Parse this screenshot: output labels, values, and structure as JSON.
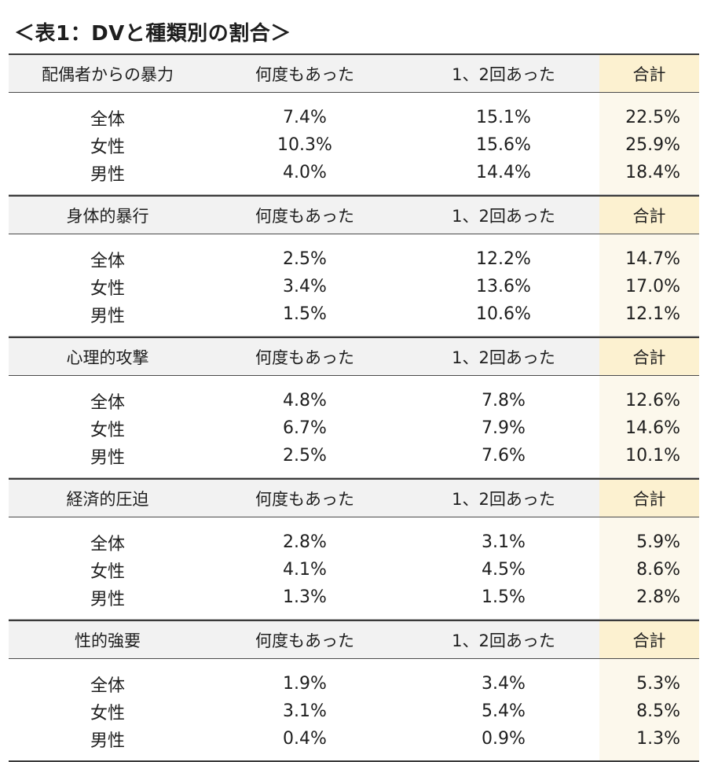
{
  "title": "＜表1：DVと種類別の割合＞",
  "sections": [
    {
      "category": "配偶者からの暴力",
      "col_many": "何度もあった",
      "col_once": "1、2回あった",
      "col_total": "合計",
      "rows": [
        {
          "label": "全体",
          "many": "7.4%",
          "once": "15.1%",
          "total": "22.5%"
        },
        {
          "label": "女性",
          "many": "10.3%",
          "once": "15.6%",
          "total": "25.9%"
        },
        {
          "label": "男性",
          "many": "4.0%",
          "once": "14.4%",
          "total": "18.4%"
        }
      ]
    },
    {
      "category": "身体的暴行",
      "col_many": "何度もあった",
      "col_once": "1、2回あった",
      "col_total": "合計",
      "rows": [
        {
          "label": "全体",
          "many": "2.5%",
          "once": "12.2%",
          "total": "14.7%"
        },
        {
          "label": "女性",
          "many": "3.4%",
          "once": "13.6%",
          "total": "17.0%"
        },
        {
          "label": "男性",
          "many": "1.5%",
          "once": "10.6%",
          "total": "12.1%"
        }
      ]
    },
    {
      "category": "心理的攻撃",
      "col_many": "何度もあった",
      "col_once": "1、2回あった",
      "col_total": "合計",
      "rows": [
        {
          "label": "全体",
          "many": "4.8%",
          "once": "7.8%",
          "total": "12.6%"
        },
        {
          "label": "女性",
          "many": "6.7%",
          "once": "7.9%",
          "total": "14.6%"
        },
        {
          "label": "男性",
          "many": "2.5%",
          "once": "7.6%",
          "total": "10.1%"
        }
      ]
    },
    {
      "category": "経済的圧迫",
      "col_many": "何度もあった",
      "col_once": "1、2回あった",
      "col_total": "合計",
      "rows": [
        {
          "label": "全体",
          "many": "2.8%",
          "once": "3.1%",
          "total": "5.9%"
        },
        {
          "label": "女性",
          "many": "4.1%",
          "once": "4.5%",
          "total": "8.6%"
        },
        {
          "label": "男性",
          "many": "1.3%",
          "once": "1.5%",
          "total": "2.8%"
        }
      ]
    },
    {
      "category": "性的強要",
      "col_many": "何度もあった",
      "col_once": "1、2回あった",
      "col_total": "合計",
      "rows": [
        {
          "label": "全体",
          "many": "1.9%",
          "once": "3.4%",
          "total": "5.3%"
        },
        {
          "label": "女性",
          "many": "3.1%",
          "once": "5.4%",
          "total": "8.5%"
        },
        {
          "label": "男性",
          "many": "0.4%",
          "once": "0.9%",
          "total": "1.3%"
        }
      ]
    }
  ],
  "colors": {
    "header_bg": "#f2f2f2",
    "total_header_bg": "#fcf1d0",
    "total_body_bg": "#fcf8ec",
    "rule": "#3a3a3a"
  }
}
